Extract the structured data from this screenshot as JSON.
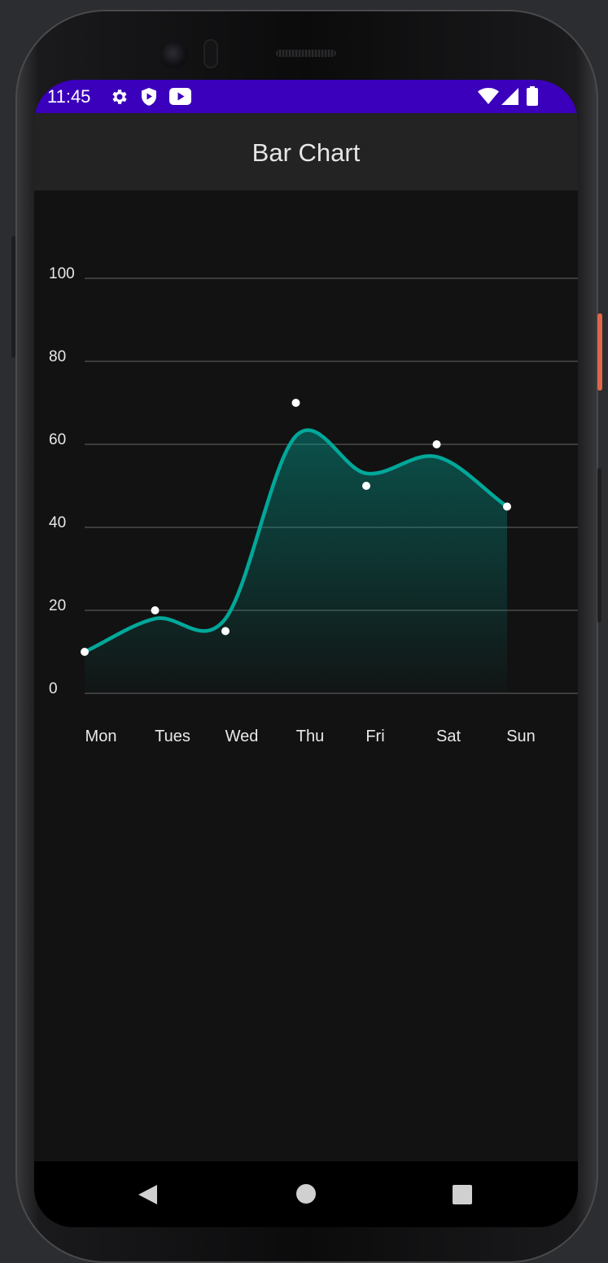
{
  "status_bar": {
    "time": "11:45",
    "left_icons": [
      "gear-icon",
      "shield-play-icon",
      "youtube-icon"
    ],
    "right_icons": [
      "wifi-icon",
      "cell-signal-icon",
      "battery-icon"
    ],
    "color": "#3b00bb"
  },
  "app_bar": {
    "title": "Bar Chart"
  },
  "chart_data": {
    "type": "line",
    "categories": [
      "Mon",
      "Tues",
      "Wed",
      "Thu",
      "Fri",
      "Sat",
      "Sun"
    ],
    "values": [
      10,
      20,
      15,
      70,
      50,
      60,
      45
    ],
    "smoothed_line_values": [
      10,
      18,
      18,
      62,
      53,
      57,
      45
    ],
    "yticks": [
      0,
      20,
      40,
      60,
      80,
      100
    ],
    "ylim": [
      0,
      100
    ],
    "grid": true,
    "line_color": "#00a89a",
    "fill": "gradient",
    "point_color": "#ffffff",
    "title": "",
    "xlabel": "",
    "ylabel": ""
  },
  "nav_bar": {
    "items": [
      "back-icon",
      "home-icon",
      "recents-icon"
    ]
  }
}
